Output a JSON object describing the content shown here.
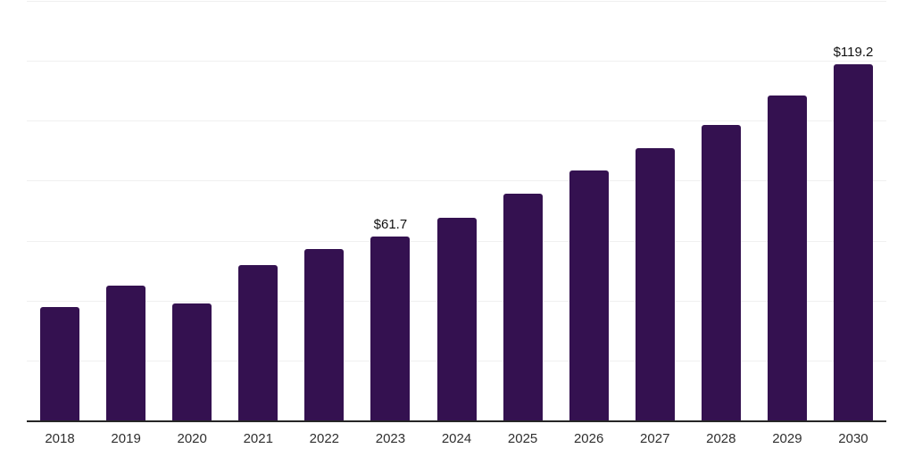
{
  "chart_data": {
    "type": "bar",
    "title": "",
    "xlabel": "",
    "ylabel": "",
    "categories": [
      "2018",
      "2019",
      "2020",
      "2021",
      "2022",
      "2023",
      "2024",
      "2025",
      "2026",
      "2027",
      "2028",
      "2029",
      "2030"
    ],
    "values": [
      38.1,
      45.4,
      39.3,
      52.2,
      57.6,
      61.7,
      67.8,
      75.9,
      83.6,
      91.2,
      98.9,
      108.6,
      119.2
    ],
    "bar_labels": [
      "",
      "",
      "",
      "",
      "",
      "$61.7",
      "",
      "",
      "",
      "",
      "",
      "",
      "$119.2"
    ],
    "ylim": [
      0,
      140
    ],
    "gridline_step": 20,
    "grid": "horizontal-light",
    "legend": "none",
    "y_axis_tick_labels_shown": false
  },
  "colors": {
    "bar": "#341150",
    "grid": "#f0f0f0",
    "axis": "#262626",
    "value_label_text": "#111111",
    "tick_text": "#2f2f2f",
    "background": "#ffffff"
  }
}
